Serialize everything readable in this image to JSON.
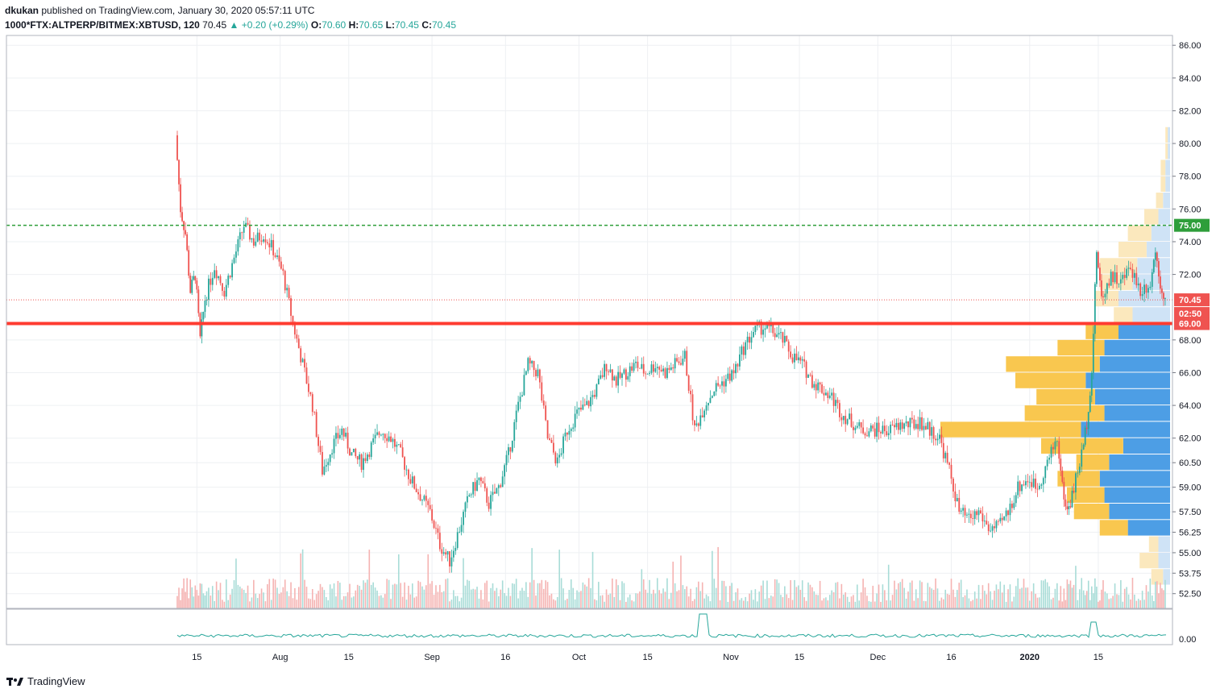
{
  "publish_line": {
    "author": "dkukan",
    "text": "published on TradingView.com, January 30, 2020 05:57:11 UTC"
  },
  "symbol_line": {
    "symbol": "1000*FTX:ALTPERP/BITMEX:XBTUSD, 120",
    "last": "70.45",
    "change": "+0.20 (+0.29%)",
    "o_label": "O:",
    "o": "70.60",
    "h_label": "H:",
    "h": "70.65",
    "l_label": "L:",
    "l": "70.45",
    "c_label": "C:",
    "c": "70.45"
  },
  "footer": {
    "brand": "TradingView"
  },
  "colors": {
    "up": "#26a69a",
    "down": "#ef5350",
    "profile_up": "#f9c74f",
    "profile_blue": "#4d9ee5",
    "level_line": "#ff3b30",
    "target_line": "#2e9e3a"
  },
  "chart_data": {
    "type": "candlestick",
    "y_axis_ticks": [
      "86.00",
      "84.00",
      "82.00",
      "80.00",
      "78.00",
      "76.00",
      "74.00",
      "72.00",
      "68.00",
      "66.00",
      "64.00",
      "62.00",
      "60.50",
      "59.00",
      "57.50",
      "56.25",
      "55.00",
      "53.75",
      "52.50"
    ],
    "ylim": [
      51.6,
      86.6
    ],
    "x_axis_ticks": [
      "15",
      "Aug",
      "15",
      "Sep",
      "16",
      "Oct",
      "15",
      "Nov",
      "15",
      "Dec",
      "16",
      "2020",
      "15"
    ],
    "x_axis_dates": [
      "2019-07-15",
      "2019-08-01",
      "2019-08-15",
      "2019-09-01",
      "2019-09-16",
      "2019-10-01",
      "2019-10-15",
      "2019-11-01",
      "2019-11-15",
      "2019-12-01",
      "2019-12-16",
      "2020-01-01",
      "2020-01-15"
    ],
    "price_labels": [
      {
        "value": 75.0,
        "text": "75.00",
        "color": "#2e9e3a"
      },
      {
        "value": 70.45,
        "text": "70.45",
        "color": "#ef5350"
      },
      {
        "text": "02:50",
        "color": "#ef5350"
      },
      {
        "value": 69.0,
        "text": "69.00",
        "color": "#ef5350"
      }
    ],
    "horizontal_lines": [
      {
        "value": 75.0,
        "style": "dashed",
        "color": "#2e9e3a"
      },
      {
        "value": 69.0,
        "style": "solid",
        "color": "#ff3b30"
      },
      {
        "value": 70.45,
        "style": "dotted",
        "color": "#ef5350"
      }
    ],
    "close_path": [
      [
        "2019-07-11",
        80.5
      ],
      [
        "2019-07-12",
        76.0
      ],
      [
        "2019-07-13",
        74.5
      ],
      [
        "2019-07-14",
        71.0
      ],
      [
        "2019-07-15",
        72.0
      ],
      [
        "2019-07-16",
        68.0
      ],
      [
        "2019-07-17",
        70.5
      ],
      [
        "2019-07-19",
        72.5
      ],
      [
        "2019-07-21",
        71.0
      ],
      [
        "2019-07-23",
        73.0
      ],
      [
        "2019-07-25",
        75.0
      ],
      [
        "2019-07-27",
        74.0
      ],
      [
        "2019-07-29",
        74.5
      ],
      [
        "2019-07-31",
        73.5
      ],
      [
        "2019-08-02",
        72.0
      ],
      [
        "2019-08-04",
        69.0
      ],
      [
        "2019-08-06",
        66.5
      ],
      [
        "2019-08-08",
        64.0
      ],
      [
        "2019-08-10",
        60.0
      ],
      [
        "2019-08-12",
        61.5
      ],
      [
        "2019-08-14",
        62.5
      ],
      [
        "2019-08-16",
        61.0
      ],
      [
        "2019-08-18",
        60.5
      ],
      [
        "2019-08-20",
        61.5
      ],
      [
        "2019-08-22",
        62.5
      ],
      [
        "2019-08-24",
        62.0
      ],
      [
        "2019-08-26",
        61.0
      ],
      [
        "2019-08-28",
        59.5
      ],
      [
        "2019-08-30",
        58.5
      ],
      [
        "2019-09-01",
        57.5
      ],
      [
        "2019-09-03",
        55.5
      ],
      [
        "2019-09-05",
        54.5
      ],
      [
        "2019-09-07",
        56.5
      ],
      [
        "2019-09-09",
        58.5
      ],
      [
        "2019-09-11",
        59.5
      ],
      [
        "2019-09-13",
        58.0
      ],
      [
        "2019-09-15",
        59.0
      ],
      [
        "2019-09-17",
        61.0
      ],
      [
        "2019-09-19",
        64.0
      ],
      [
        "2019-09-21",
        66.5
      ],
      [
        "2019-09-23",
        66.0
      ],
      [
        "2019-09-25",
        62.0
      ],
      [
        "2019-09-27",
        60.5
      ],
      [
        "2019-09-29",
        62.5
      ],
      [
        "2019-10-01",
        63.5
      ],
      [
        "2019-10-03",
        64.0
      ],
      [
        "2019-10-05",
        65.0
      ],
      [
        "2019-10-07",
        66.5
      ],
      [
        "2019-10-09",
        65.5
      ],
      [
        "2019-10-11",
        66.0
      ],
      [
        "2019-10-13",
        66.5
      ],
      [
        "2019-10-15",
        66.0
      ],
      [
        "2019-10-17",
        66.5
      ],
      [
        "2019-10-19",
        66.0
      ],
      [
        "2019-10-21",
        66.5
      ],
      [
        "2019-10-23",
        67.0
      ],
      [
        "2019-10-25",
        62.5
      ],
      [
        "2019-10-27",
        64.0
      ],
      [
        "2019-10-29",
        65.0
      ],
      [
        "2019-10-31",
        65.5
      ],
      [
        "2019-11-02",
        66.0
      ],
      [
        "2019-11-04",
        67.5
      ],
      [
        "2019-11-06",
        68.5
      ],
      [
        "2019-11-08",
        68.8
      ],
      [
        "2019-11-10",
        68.5
      ],
      [
        "2019-11-12",
        68.0
      ],
      [
        "2019-11-14",
        67.0
      ],
      [
        "2019-11-16",
        66.5
      ],
      [
        "2019-11-18",
        65.5
      ],
      [
        "2019-11-20",
        65.0
      ],
      [
        "2019-11-22",
        64.5
      ],
      [
        "2019-11-24",
        63.5
      ],
      [
        "2019-11-26",
        63.0
      ],
      [
        "2019-11-28",
        62.5
      ],
      [
        "2019-11-30",
        62.5
      ],
      [
        "2019-12-02",
        62.5
      ],
      [
        "2019-12-04",
        62.5
      ],
      [
        "2019-12-06",
        62.8
      ],
      [
        "2019-12-08",
        62.8
      ],
      [
        "2019-12-10",
        63.0
      ],
      [
        "2019-12-12",
        62.5
      ],
      [
        "2019-12-14",
        62.0
      ],
      [
        "2019-12-16",
        60.0
      ],
      [
        "2019-12-18",
        57.5
      ],
      [
        "2019-12-20",
        57.0
      ],
      [
        "2019-12-22",
        57.5
      ],
      [
        "2019-12-24",
        56.5
      ],
      [
        "2019-12-26",
        56.5
      ],
      [
        "2019-12-28",
        57.5
      ],
      [
        "2019-12-30",
        59.0
      ],
      [
        "2020-01-01",
        59.5
      ],
      [
        "2020-01-03",
        59.0
      ],
      [
        "2020-01-05",
        60.5
      ],
      [
        "2020-01-07",
        62.0
      ],
      [
        "2020-01-08",
        59.0
      ],
      [
        "2020-01-09",
        57.5
      ],
      [
        "2020-01-10",
        58.5
      ],
      [
        "2020-01-12",
        61.0
      ],
      [
        "2020-01-13",
        63.0
      ],
      [
        "2020-01-14",
        66.0
      ],
      [
        "2020-01-15",
        73.5
      ],
      [
        "2020-01-16",
        70.5
      ],
      [
        "2020-01-18",
        72.0
      ],
      [
        "2020-01-20",
        71.5
      ],
      [
        "2020-01-22",
        72.5
      ],
      [
        "2020-01-24",
        71.0
      ],
      [
        "2020-01-26",
        71.5
      ],
      [
        "2020-01-27",
        73.5
      ],
      [
        "2020-01-28",
        71.5
      ],
      [
        "2020-01-29",
        70.45
      ]
    ],
    "volume_profile": {
      "bins": [
        53.5,
        54.5,
        55.5,
        56.5,
        57.5,
        58.5,
        59.5,
        60.5,
        61.5,
        62.5,
        63.5,
        64.5,
        65.5,
        66.5,
        67.5,
        68.5,
        69.5,
        70.5,
        71.5,
        72.5,
        73.5,
        74.5,
        75.5,
        76.5,
        77.5,
        78.5,
        79.5,
        80.5
      ],
      "up_volume": [
        5,
        8,
        4,
        12,
        15,
        16,
        18,
        14,
        35,
        60,
        34,
        25,
        30,
        40,
        20,
        14,
        8,
        10,
        14,
        16,
        12,
        10,
        6,
        3,
        2,
        2,
        1,
        1
      ],
      "down_volume": [
        3,
        5,
        5,
        18,
        26,
        28,
        30,
        26,
        20,
        38,
        28,
        32,
        36,
        30,
        28,
        22,
        16,
        22,
        16,
        14,
        10,
        8,
        5,
        3,
        2,
        2,
        1,
        1
      ]
    },
    "oscillator": {
      "axis_label": "0.00"
    }
  }
}
